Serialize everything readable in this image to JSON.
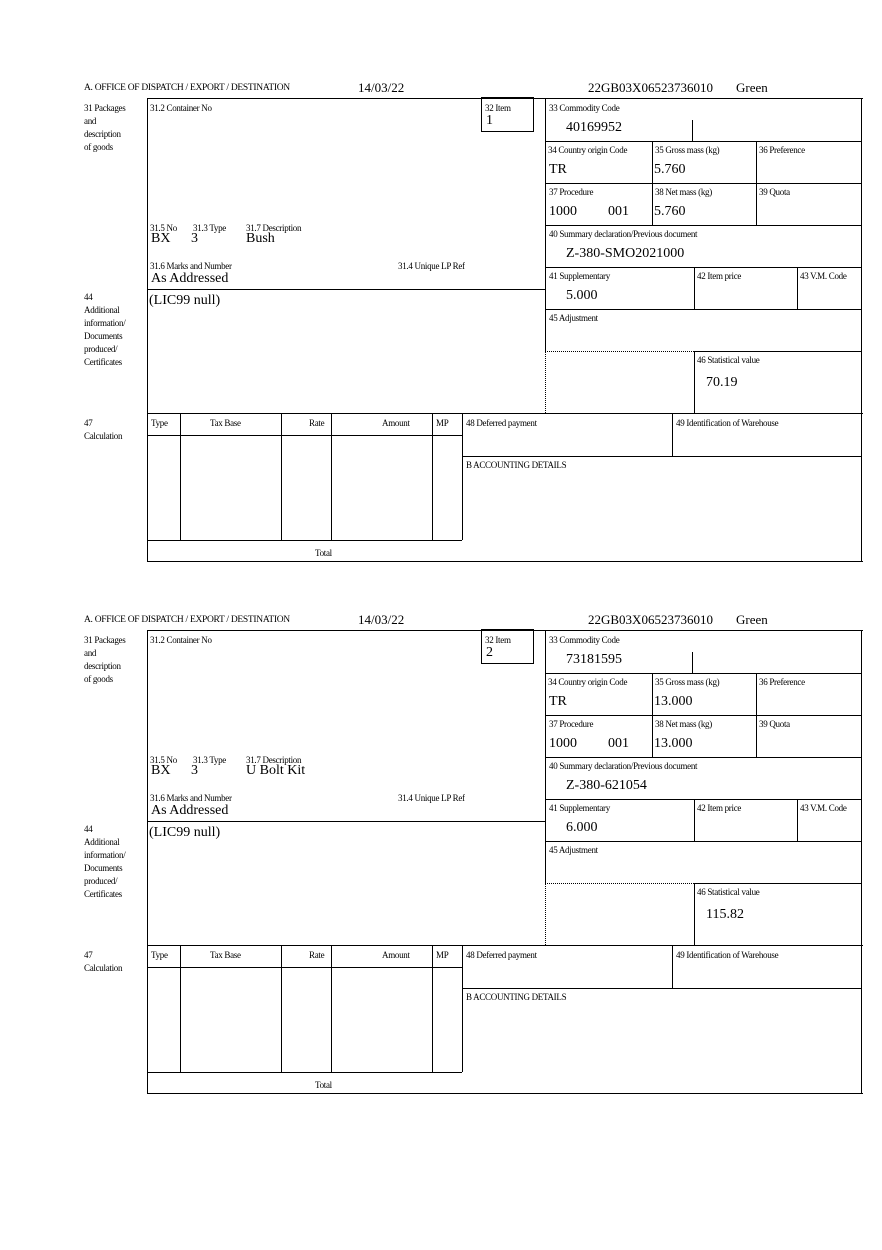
{
  "labels": {
    "office": "A. OFFICE OF DISPATCH / EXPORT / DESTINATION",
    "packages": [
      "31 Packages",
      "and",
      "description",
      "of goods"
    ],
    "container_no": "31.2 Container No",
    "item": "32 Item",
    "commodity_code": "33 Commodity Code",
    "country_origin": "34 Country origin Code",
    "gross_mass": "35 Gross mass (kg)",
    "preference": "36 Preference",
    "procedure": "37 Procedure",
    "net_mass": "38 Net mass (kg)",
    "quota": "39 Quota",
    "summary_declaration": "40 Summary declaration/Previous document",
    "supplementary": "41 Supplementary",
    "item_price": "42 Item price",
    "vm_code": "43 V.M. Code",
    "adjustment": "45 Adjustment",
    "statistical_value": "46 Statistical value",
    "pkg_no": "31.5 No",
    "pkg_type": "31.3 Type",
    "pkg_description": "31.7 Description",
    "marks_numbers": "31.6 Marks and Number",
    "unique_lp_ref": "31.4 Unique LP Ref",
    "additional_info": [
      "44",
      "Additional",
      "information/",
      "Documents",
      "produced/",
      "Certificates"
    ],
    "calculation": [
      "47",
      "Calculation"
    ],
    "calc_columns": [
      "Type",
      "Tax Base",
      "Rate",
      "Amount",
      "MP"
    ],
    "total": "Total",
    "deferred_payment": "48 Deferred payment",
    "warehouse_id": "49 Identification of Warehouse",
    "accounting": "B ACCOUNTING DETAILS"
  },
  "items": [
    {
      "date": "14/03/22",
      "reference": "22GB03X06523736010",
      "route": "Green",
      "item_no": "1",
      "commodity_code": "40169952",
      "country_origin": "TR",
      "gross_mass": "5.760",
      "procedure": "1000",
      "procedure_additional": "001",
      "net_mass": "5.760",
      "summary_declaration": "Z-380-SMO2021000",
      "supplementary": "5.000",
      "statistical_value": "70.19",
      "pkg_no": "BX",
      "pkg_type": "3",
      "pkg_description": "Bush",
      "marks_numbers": "As Addressed",
      "additional_info": "(LIC99 null)"
    },
    {
      "date": "14/03/22",
      "reference": "22GB03X06523736010",
      "route": "Green",
      "item_no": "2",
      "commodity_code": "73181595",
      "country_origin": "TR",
      "gross_mass": "13.000",
      "procedure": "1000",
      "procedure_additional": "001",
      "net_mass": "13.000",
      "summary_declaration": "Z-380-621054",
      "supplementary": "6.000",
      "statistical_value": "115.82",
      "pkg_no": "BX",
      "pkg_type": "3",
      "pkg_description": "U Bolt Kit",
      "marks_numbers": "As Addressed",
      "additional_info": "(LIC99 null)"
    }
  ]
}
